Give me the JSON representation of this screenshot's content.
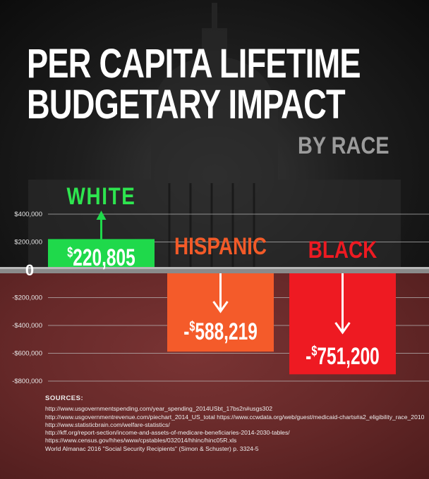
{
  "title_lines": [
    "PER CAPITA  LIFETIME",
    "BUDGETARY IMPACT"
  ],
  "subtitle": "BY RACE",
  "chart_data": {
    "type": "bar",
    "title": "PER CAPITA LIFETIME BUDGETARY IMPACT BY RACE",
    "categories": [
      "WHITE",
      "HISPANIC",
      "BLACK"
    ],
    "values": [
      220805,
      -588219,
      -751200
    ],
    "data_labels": [
      {
        "sign": "",
        "currency": "$",
        "amount": "220,805"
      },
      {
        "sign": "-",
        "currency": "$",
        "amount": "588,219"
      },
      {
        "sign": "-",
        "currency": "$",
        "amount": "751,200"
      }
    ],
    "colors": [
      "#1fd94b",
      "#f45b2a",
      "#ee1a22"
    ],
    "label_colors": [
      "#2ee54f",
      "#f25a28",
      "#ee1a22"
    ],
    "yticks": [
      {
        "value": 400000,
        "label": "$400,000"
      },
      {
        "value": 200000,
        "label": "$200,000"
      },
      {
        "value": 0,
        "label": "0"
      },
      {
        "value": -200000,
        "label": "-$200,000"
      },
      {
        "value": -400000,
        "label": "-$400,000"
      },
      {
        "value": -600000,
        "label": "-$600,000"
      },
      {
        "value": -800000,
        "label": "-$800,000"
      }
    ],
    "ylim": [
      -800000,
      400000
    ],
    "grid": true,
    "legend": "none"
  },
  "sources": {
    "heading": "SOURCES:",
    "lines": [
      "http://www.usgovernmentspending.com/year_spending_2014USbt_17bs2n#usgs302",
      "http://www.usgovernmentrevenue.com/piechart_2014_US_total https://www.ccwdata.org/web/guest/medicaid-charts#a2_eligibility_race_2010",
      "http://www.statisticbrain.com/welfare-statistics/",
      "http://kff.org/report-section/income-and-assets-of-medicare-beneficiaries-2014-2030-tables/",
      "https://www.census.gov/hhes/www/cpstables/032014/hhinc/hinc05R.xls",
      "World Almanac 2016 \"Social Security Recipients\" (Simon & Schuster) p. 3324-5"
    ]
  }
}
